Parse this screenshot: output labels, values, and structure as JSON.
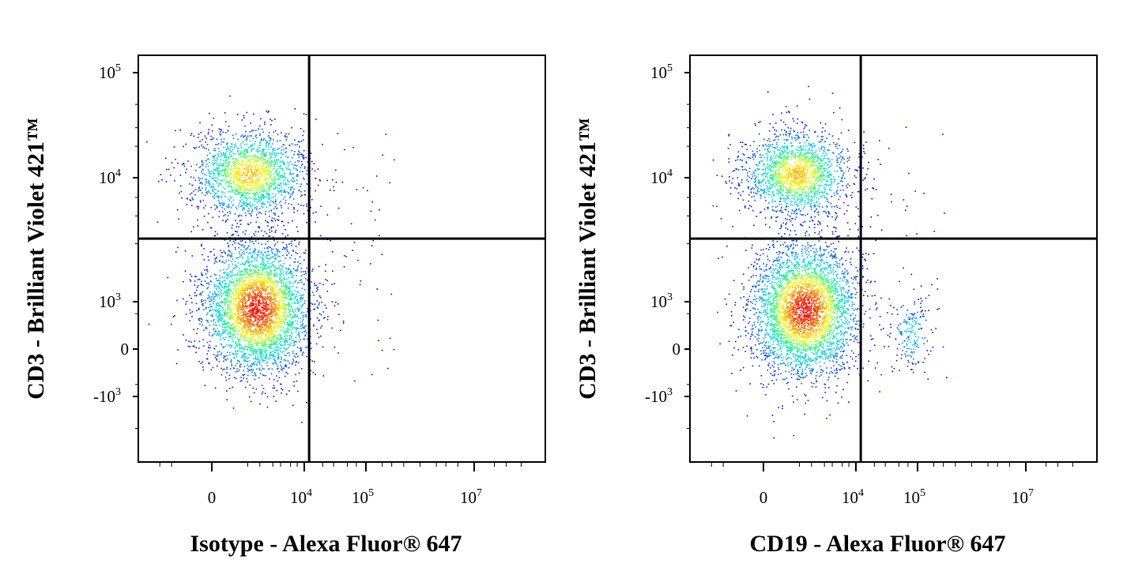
{
  "chart_data": [
    {
      "type": "scatter",
      "subtype": "flow-cytometry-density-dot-plot",
      "xlabel": "Isotype - Alexa Fluor® 647",
      "ylabel": "CD3 - Brilliant Violet 421™",
      "x_scale": "biexponential",
      "y_scale": "biexponential",
      "x_ticks": [
        {
          "base": "0",
          "exp": ""
        },
        {
          "base": "10",
          "exp": "4"
        },
        {
          "base": "10",
          "exp": "5"
        },
        {
          "base": "10",
          "exp": "7"
        }
      ],
      "y_ticks": [
        {
          "base": "10",
          "exp": "5"
        },
        {
          "base": "10",
          "exp": "4"
        },
        {
          "base": "10",
          "exp": "3"
        },
        {
          "base": "0",
          "exp": ""
        },
        {
          "base": "-10",
          "exp": "3"
        }
      ],
      "quadrant_gate": {
        "x": 12000,
        "y": 3300
      },
      "populations": [
        {
          "name": "",
          "x_center": 1500,
          "y_center": 900,
          "relative_density": "highest"
        },
        {
          "name": "",
          "x_center": 1300,
          "y_center": 11000,
          "relative_density": "medium"
        }
      ],
      "colormap": [
        "#0000ff",
        "#00c8ff",
        "#00ff80",
        "#ffff00",
        "#ff8000",
        "#ff0000"
      ]
    },
    {
      "type": "scatter",
      "subtype": "flow-cytometry-density-dot-plot",
      "xlabel": "CD19 - Alexa Fluor® 647",
      "ylabel": "CD3 - Brilliant Violet 421™",
      "x_scale": "biexponential",
      "y_scale": "biexponential",
      "x_ticks": [
        {
          "base": "0",
          "exp": ""
        },
        {
          "base": "10",
          "exp": "4"
        },
        {
          "base": "10",
          "exp": "5"
        },
        {
          "base": "10",
          "exp": "7"
        }
      ],
      "y_ticks": [
        {
          "base": "10",
          "exp": "5"
        },
        {
          "base": "10",
          "exp": "4"
        },
        {
          "base": "10",
          "exp": "3"
        },
        {
          "base": "0",
          "exp": ""
        },
        {
          "base": "-10",
          "exp": "3"
        }
      ],
      "quadrant_gate": {
        "x": 12000,
        "y": 3300
      },
      "populations": [
        {
          "name": "",
          "x_center": 1300,
          "y_center": 850,
          "relative_density": "highest"
        },
        {
          "name": "",
          "x_center": 1200,
          "y_center": 11000,
          "relative_density": "medium"
        },
        {
          "name": "",
          "x_center": 70000,
          "y_center": 300,
          "relative_density": "low"
        }
      ],
      "colormap": [
        "#0000ff",
        "#00c8ff",
        "#00ff80",
        "#ffff00",
        "#ff8000",
        "#ff0000"
      ]
    }
  ]
}
